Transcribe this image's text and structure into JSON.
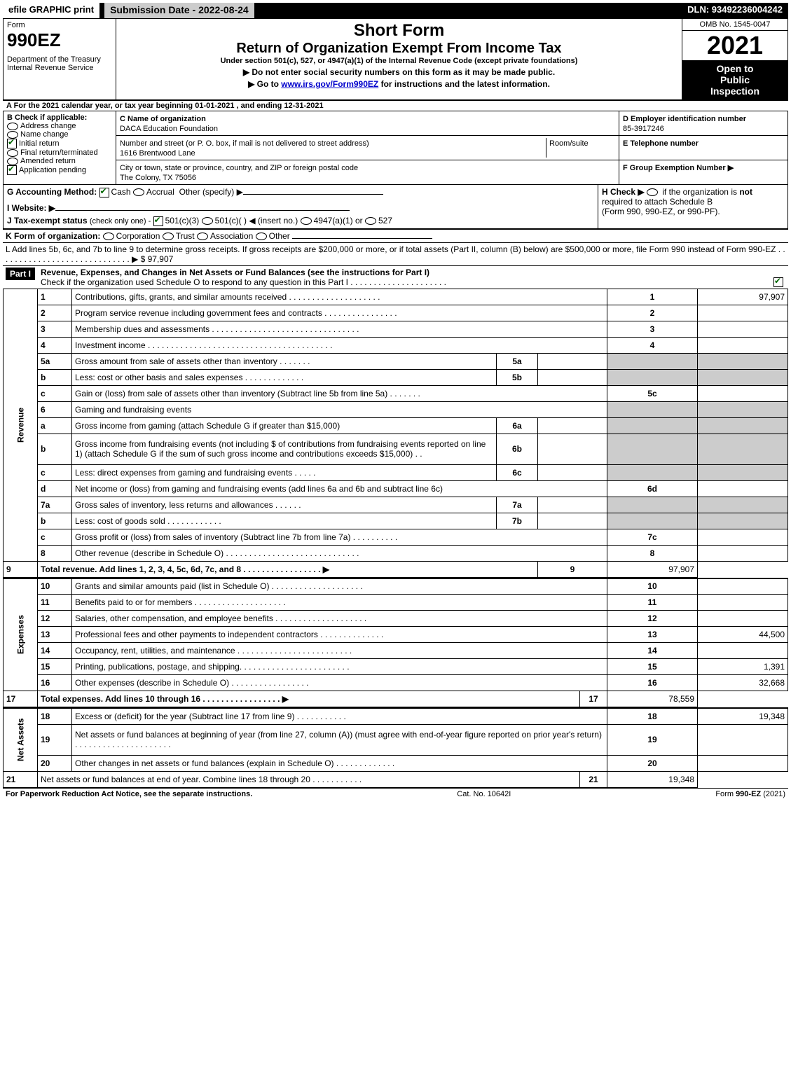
{
  "topbar": {
    "efile": "efile GRAPHIC print",
    "submission": "Submission Date - 2022-08-24",
    "dln": "DLN: 93492236004242"
  },
  "header": {
    "form_word": "Form",
    "form_number": "990EZ",
    "dept1": "Department of the Treasury",
    "dept2": "Internal Revenue Service",
    "short_form": "Short Form",
    "return_title": "Return of Organization Exempt From Income Tax",
    "under": "Under section 501(c), 527, or 4947(a)(1) of the Internal Revenue Code (except private foundations)",
    "instr1": "▶ Do not enter social security numbers on this form as it may be made public.",
    "instr2_pre": "▶ Go to ",
    "instr2_link": "www.irs.gov/Form990EZ",
    "instr2_post": " for instructions and the latest information.",
    "omb": "OMB No. 1545-0047",
    "year": "2021",
    "inspection1": "Open to",
    "inspection2": "Public",
    "inspection3": "Inspection"
  },
  "sectionA": {
    "text_pre": "A  For the 2021 calendar year, or tax year beginning ",
    "begin": "01-01-2021 ",
    "mid": ", and ending ",
    "end": "12-31-2021"
  },
  "sectionB": {
    "title": "B  Check if applicable:",
    "opts": [
      "Address change",
      "Name change",
      "Initial return",
      "Final return/terminated",
      "Amended return",
      "Application pending"
    ],
    "checked": [
      false,
      false,
      true,
      false,
      false,
      true
    ]
  },
  "sectionC": {
    "label": "C Name of organization",
    "name": "DACA Education Foundation",
    "street_label": "Number and street (or P. O. box, if mail is not delivered to street address)",
    "street": "1616 Brentwood Lane",
    "room_label": "Room/suite",
    "city_label": "City or town, state or province, country, and ZIP or foreign postal code",
    "city": "The Colony, TX  75056"
  },
  "sectionD": {
    "label": "D Employer identification number",
    "value": "85-3917246"
  },
  "sectionE": {
    "label": "E Telephone number",
    "value": ""
  },
  "sectionF": {
    "label": "F Group Exemption Number  ▶",
    "value": ""
  },
  "sectionG": {
    "label": "G Accounting Method:",
    "cash": "Cash",
    "accrual": "Accrual",
    "other": "Other (specify) ▶",
    "cash_checked": true
  },
  "sectionH": {
    "label_pre": "H  Check ▶ ",
    "label_post": " if the organization is ",
    "not": "not",
    "line2": "required to attach Schedule B",
    "line3": "(Form 990, 990-EZ, or 990-PF)."
  },
  "sectionI": {
    "label": "I Website: ▶"
  },
  "sectionJ": {
    "label": "J Tax-exempt status",
    "sub": "(check only one) -",
    "opt1": "501(c)(3)",
    "opt2": "501(c)(   ) ◀ (insert no.)",
    "opt3": "4947(a)(1) or",
    "opt4": "527",
    "checked1": true
  },
  "sectionK": {
    "label": "K Form of organization:",
    "opts": [
      "Corporation",
      "Trust",
      "Association",
      "Other"
    ]
  },
  "sectionL": {
    "text": "L Add lines 5b, 6c, and 7b to line 9 to determine gross receipts. If gross receipts are $200,000 or more, or if total assets (Part II, column (B) below) are $500,000 or more, file Form 990 instead of Form 990-EZ . . . . . . . . . . . . . . . . . . . . . . . . . . . . . ▶ $ ",
    "amount": "97,907"
  },
  "part1": {
    "header": "Part I",
    "title": "Revenue, Expenses, and Changes in Net Assets or Fund Balances (see the instructions for Part I)",
    "sub": "Check if the organization used Schedule O to respond to any question in this Part I . . . . . . . . . . . . . . . . . . . . .",
    "sub_checked": true
  },
  "sections": {
    "revenue": "Revenue",
    "expenses": "Expenses",
    "netassets": "Net Assets"
  },
  "lines": [
    {
      "n": "1",
      "d": "Contributions, gifts, grants, and similar amounts received . . . . . . . . . . . . . . . . . . . .",
      "l": "1",
      "v": "97,907"
    },
    {
      "n": "2",
      "d": "Program service revenue including government fees and contracts . . . . . . . . . . . . . . . .",
      "l": "2",
      "v": ""
    },
    {
      "n": "3",
      "d": "Membership dues and assessments . . . . . . . . . . . . . . . . . . . . . . . . . . . . . . . .",
      "l": "3",
      "v": ""
    },
    {
      "n": "4",
      "d": "Investment income . . . . . . . . . . . . . . . . . . . . . . . . . . . . . . . . . . . . . . . .",
      "l": "4",
      "v": ""
    },
    {
      "n": "5a",
      "d": "Gross amount from sale of assets other than inventory . . . . . . .",
      "sub": "5a",
      "shade": true
    },
    {
      "n": "b",
      "d": "Less: cost or other basis and sales expenses . . . . . . . . . . . . .",
      "sub": "5b",
      "shade": true
    },
    {
      "n": "c",
      "d": "Gain or (loss) from sale of assets other than inventory (Subtract line 5b from line 5a) . . . . . . .",
      "l": "5c",
      "v": ""
    },
    {
      "n": "6",
      "d": "Gaming and fundraising events",
      "shade": true,
      "noline": true
    },
    {
      "n": "a",
      "d": "Gross income from gaming (attach Schedule G if greater than $15,000)",
      "sub": "6a",
      "shade": true
    },
    {
      "n": "b",
      "d": "Gross income from fundraising events (not including $                         of contributions from fundraising events reported on line 1) (attach Schedule G if the sum of such gross income and contributions exceeds $15,000)    .  .",
      "sub": "6b",
      "shade": true,
      "tall": true
    },
    {
      "n": "c",
      "d": "Less: direct expenses from gaming and fundraising events  . . . . .",
      "sub": "6c",
      "shade": true
    },
    {
      "n": "d",
      "d": "Net income or (loss) from gaming and fundraising events (add lines 6a and 6b and subtract line 6c)",
      "l": "6d",
      "v": ""
    },
    {
      "n": "7a",
      "d": "Gross sales of inventory, less returns and allowances . . . . . .",
      "sub": "7a",
      "shade": true
    },
    {
      "n": "b",
      "d": "Less: cost of goods sold           .    .    .    .    .    .    .    .    .    .    .    .",
      "sub": "7b",
      "shade": true
    },
    {
      "n": "c",
      "d": "Gross profit or (loss) from sales of inventory (Subtract line 7b from line 7a) . . . . . . . . . .",
      "l": "7c",
      "v": ""
    },
    {
      "n": "8",
      "d": "Other revenue (describe in Schedule O) . . . . . . . . . . . . . . . . . . . . . . . . . . . . .",
      "l": "8",
      "v": ""
    },
    {
      "n": "9",
      "d": "Total revenue. Add lines 1, 2, 3, 4, 5c, 6d, 7c, and 8  .  .  .  .  .  .  .  .  .  .  .  .  .  .  .  .  . ▶",
      "l": "9",
      "v": "97,907",
      "bold": true
    }
  ],
  "expenses": [
    {
      "n": "10",
      "d": "Grants and similar amounts paid (list in Schedule O) . . . . . . . . . . . . . . . . . . . .",
      "l": "10",
      "v": ""
    },
    {
      "n": "11",
      "d": "Benefits paid to or for members    .   .   .   .   .   .   .   .   .   .   .   .   .   .   .   .   .   .   .   .",
      "l": "11",
      "v": ""
    },
    {
      "n": "12",
      "d": "Salaries, other compensation, and employee benefits . . . . . . . . . . . . . . . . . . . .",
      "l": "12",
      "v": ""
    },
    {
      "n": "13",
      "d": "Professional fees and other payments to independent contractors . . . . . . . . . . . . . .",
      "l": "13",
      "v": "44,500"
    },
    {
      "n": "14",
      "d": "Occupancy, rent, utilities, and maintenance . . . . . . . . . . . . . . . . . . . . . . . . .",
      "l": "14",
      "v": ""
    },
    {
      "n": "15",
      "d": "Printing, publications, postage, and shipping. . . . . . . . . . . . . . . . . . . . . . . .",
      "l": "15",
      "v": "1,391"
    },
    {
      "n": "16",
      "d": "Other expenses (describe in Schedule O)    .   .   .   .   .   .   .   .   .   .   .   .   .   .   .   .   .",
      "l": "16",
      "v": "32,668"
    },
    {
      "n": "17",
      "d": "Total expenses. Add lines 10 through 16     .   .   .   .   .   .   .   .   .   .   .   .   .   .   .   .   . ▶",
      "l": "17",
      "v": "78,559",
      "bold": true
    }
  ],
  "netassets": [
    {
      "n": "18",
      "d": "Excess or (deficit) for the year (Subtract line 17 from line 9)       .    .    .    .    .    .    .    .    .    .    .",
      "l": "18",
      "v": "19,348"
    },
    {
      "n": "19",
      "d": "Net assets or fund balances at beginning of year (from line 27, column (A)) (must agree with end-of-year figure reported on prior year's return) . . . . . . . . . . . . . . . . . . . . .",
      "l": "19",
      "v": "",
      "tall": true
    },
    {
      "n": "20",
      "d": "Other changes in net assets or fund balances (explain in Schedule O) . . . . . . . . . . . . .",
      "l": "20",
      "v": ""
    },
    {
      "n": "21",
      "d": "Net assets or fund balances at end of year. Combine lines 18 through 20 . . . . . . . . . . .",
      "l": "21",
      "v": "19,348"
    }
  ],
  "footer": {
    "left": "For Paperwork Reduction Act Notice, see the separate instructions.",
    "mid": "Cat. No. 10642I",
    "right_pre": "Form ",
    "right_form": "990-EZ",
    "right_post": " (2021)"
  }
}
